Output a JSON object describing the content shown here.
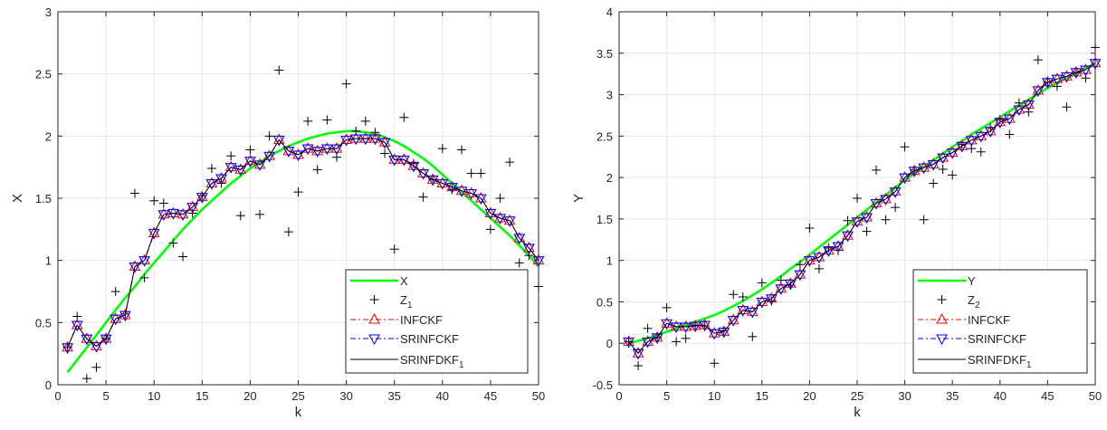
{
  "colors": {
    "truth": "#00ff00",
    "measurement": "#000000",
    "infckf": "#ff0000",
    "srinfckf": "#0000ff",
    "srinfdkf": "#000000",
    "grid": "#e6e6e6",
    "axis": "#262626"
  },
  "chart_data": [
    {
      "type": "line",
      "xlabel": "k",
      "ylabel": "X",
      "xlim": [
        0,
        50
      ],
      "ylim": [
        0,
        3
      ],
      "xticks": [
        0,
        5,
        10,
        15,
        20,
        25,
        30,
        35,
        40,
        45,
        50
      ],
      "yticks": [
        0,
        0.5,
        1,
        1.5,
        2,
        2.5,
        3
      ],
      "ytick_labels": [
        "0",
        "0.5",
        "1",
        "1.5",
        "2",
        "2.5",
        "3"
      ],
      "grid": true,
      "legend_position": "bottom-right",
      "x": [
        1,
        2,
        3,
        4,
        5,
        6,
        7,
        8,
        9,
        10,
        11,
        12,
        13,
        14,
        15,
        16,
        17,
        18,
        19,
        20,
        21,
        22,
        23,
        24,
        25,
        26,
        27,
        28,
        29,
        30,
        31,
        32,
        33,
        34,
        35,
        36,
        37,
        38,
        39,
        40,
        41,
        42,
        43,
        44,
        45,
        46,
        47,
        48,
        49,
        50
      ],
      "series": [
        {
          "name": "X",
          "style": "truth",
          "values": [
            0.1,
            0.2,
            0.3,
            0.4,
            0.5,
            0.6,
            0.7,
            0.79,
            0.89,
            0.98,
            1.07,
            1.16,
            1.25,
            1.33,
            1.41,
            1.48,
            1.55,
            1.62,
            1.68,
            1.74,
            1.79,
            1.84,
            1.88,
            1.92,
            1.95,
            1.98,
            2.0,
            2.02,
            2.03,
            2.04,
            2.04,
            2.03,
            2.02,
            1.99,
            1.96,
            1.92,
            1.87,
            1.82,
            1.76,
            1.69,
            1.62,
            1.55,
            1.48,
            1.41,
            1.34,
            1.27,
            1.2,
            1.12,
            1.04,
            0.95
          ]
        },
        {
          "name": "Z",
          "name_sub": "1",
          "style": "measurement",
          "values": [
            0.3,
            0.55,
            0.05,
            0.14,
            0.37,
            0.75,
            0.57,
            1.54,
            0.86,
            1.48,
            1.46,
            1.14,
            1.03,
            1.38,
            1.52,
            1.74,
            1.62,
            1.84,
            1.36,
            1.89,
            1.37,
            2.0,
            2.53,
            1.23,
            1.55,
            2.12,
            1.73,
            2.13,
            1.83,
            2.42,
            2.04,
            2.12,
            2.03,
            1.86,
            1.09,
            2.15,
            1.78,
            1.51,
            1.65,
            1.9,
            1.57,
            1.89,
            1.7,
            1.7,
            1.25,
            1.5,
            1.79,
            0.98,
            1.04,
            0.79
          ]
        },
        {
          "name": "INFCKF",
          "style": "infckf",
          "values": [
            0.3,
            0.48,
            0.37,
            0.31,
            0.37,
            0.53,
            0.56,
            0.95,
            1.0,
            1.22,
            1.37,
            1.38,
            1.37,
            1.43,
            1.51,
            1.62,
            1.66,
            1.75,
            1.73,
            1.8,
            1.77,
            1.84,
            1.97,
            1.88,
            1.85,
            1.9,
            1.88,
            1.9,
            1.9,
            1.97,
            1.98,
            1.98,
            1.98,
            1.95,
            1.81,
            1.81,
            1.76,
            1.7,
            1.65,
            1.62,
            1.59,
            1.56,
            1.54,
            1.5,
            1.38,
            1.34,
            1.32,
            1.18,
            1.1,
            1.0
          ]
        },
        {
          "name": "SRINFCKF",
          "style": "srinfckf",
          "values": [
            0.3,
            0.48,
            0.37,
            0.31,
            0.37,
            0.53,
            0.56,
            0.95,
            1.0,
            1.22,
            1.37,
            1.38,
            1.37,
            1.43,
            1.51,
            1.62,
            1.66,
            1.75,
            1.73,
            1.8,
            1.77,
            1.84,
            1.97,
            1.88,
            1.85,
            1.9,
            1.88,
            1.9,
            1.9,
            1.97,
            1.98,
            1.98,
            1.98,
            1.95,
            1.81,
            1.81,
            1.76,
            1.7,
            1.65,
            1.62,
            1.59,
            1.56,
            1.54,
            1.5,
            1.38,
            1.34,
            1.32,
            1.18,
            1.1,
            1.0
          ]
        },
        {
          "name": "SRINFDKF",
          "name_sub": "1",
          "style": "srinfdkf",
          "values": [
            0.3,
            0.48,
            0.37,
            0.31,
            0.37,
            0.53,
            0.56,
            0.95,
            1.0,
            1.22,
            1.37,
            1.38,
            1.37,
            1.43,
            1.51,
            1.62,
            1.66,
            1.75,
            1.73,
            1.8,
            1.77,
            1.84,
            1.97,
            1.88,
            1.85,
            1.9,
            1.88,
            1.9,
            1.9,
            1.97,
            1.98,
            1.98,
            1.98,
            1.95,
            1.81,
            1.81,
            1.76,
            1.7,
            1.65,
            1.62,
            1.59,
            1.56,
            1.54,
            1.5,
            1.38,
            1.34,
            1.32,
            1.18,
            1.1,
            1.0
          ]
        }
      ]
    },
    {
      "type": "line",
      "xlabel": "k",
      "ylabel": "Y",
      "xlim": [
        0,
        50
      ],
      "ylim": [
        -0.5,
        4
      ],
      "xticks": [
        0,
        5,
        10,
        15,
        20,
        25,
        30,
        35,
        40,
        45,
        50
      ],
      "yticks": [
        -0.5,
        0,
        0.5,
        1,
        1.5,
        2,
        2.5,
        3,
        3.5,
        4
      ],
      "ytick_labels": [
        "-0.5",
        "0",
        "0.5",
        "1",
        "1.5",
        "2",
        "2.5",
        "3",
        "3.5",
        "4"
      ],
      "grid": true,
      "legend_position": "bottom-right",
      "x": [
        1,
        2,
        3,
        4,
        5,
        6,
        7,
        8,
        9,
        10,
        11,
        12,
        13,
        14,
        15,
        16,
        17,
        18,
        19,
        20,
        21,
        22,
        23,
        24,
        25,
        26,
        27,
        28,
        29,
        30,
        31,
        32,
        33,
        34,
        35,
        36,
        37,
        38,
        39,
        40,
        41,
        42,
        43,
        44,
        45,
        46,
        47,
        48,
        49,
        50
      ],
      "series": [
        {
          "name": "Y",
          "style": "truth",
          "values": [
            0.0,
            0.03,
            0.06,
            0.1,
            0.14,
            0.18,
            0.22,
            0.26,
            0.3,
            0.34,
            0.39,
            0.45,
            0.51,
            0.58,
            0.65,
            0.73,
            0.81,
            0.9,
            0.98,
            1.07,
            1.16,
            1.25,
            1.34,
            1.43,
            1.52,
            1.61,
            1.7,
            1.79,
            1.88,
            1.97,
            2.05,
            2.13,
            2.21,
            2.29,
            2.37,
            2.44,
            2.52,
            2.59,
            2.66,
            2.73,
            2.8,
            2.87,
            2.94,
            3.01,
            3.08,
            3.14,
            3.2,
            3.26,
            3.32,
            3.38
          ]
        },
        {
          "name": "Z",
          "name_sub": "2",
          "style": "measurement",
          "values": [
            0.02,
            -0.27,
            0.18,
            0.07,
            0.43,
            0.02,
            0.06,
            0.22,
            0.21,
            -0.24,
            0.15,
            0.59,
            0.56,
            0.08,
            0.73,
            0.51,
            0.76,
            0.7,
            0.95,
            1.39,
            0.9,
            1.15,
            1.12,
            1.48,
            1.75,
            1.35,
            2.09,
            1.49,
            1.64,
            2.37,
            2.09,
            1.49,
            1.93,
            2.1,
            2.03,
            2.4,
            2.35,
            2.31,
            2.6,
            2.7,
            2.52,
            2.9,
            2.79,
            3.42,
            3.15,
            3.1,
            2.85,
            3.27,
            3.2,
            3.57
          ]
        },
        {
          "name": "INFCKF",
          "style": "infckf",
          "values": [
            0.02,
            -0.12,
            0.02,
            0.07,
            0.24,
            0.2,
            0.2,
            0.21,
            0.22,
            0.12,
            0.14,
            0.28,
            0.4,
            0.38,
            0.5,
            0.54,
            0.66,
            0.72,
            0.83,
            1.0,
            1.04,
            1.12,
            1.17,
            1.3,
            1.47,
            1.52,
            1.69,
            1.74,
            1.83,
            2.0,
            2.08,
            2.12,
            2.16,
            2.24,
            2.3,
            2.38,
            2.45,
            2.5,
            2.56,
            2.67,
            2.71,
            2.82,
            2.88,
            3.05,
            3.15,
            3.19,
            3.22,
            3.27,
            3.3,
            3.38
          ]
        },
        {
          "name": "SRINFCKF",
          "style": "srinfckf",
          "values": [
            0.02,
            -0.12,
            0.02,
            0.07,
            0.24,
            0.2,
            0.2,
            0.21,
            0.22,
            0.12,
            0.14,
            0.28,
            0.4,
            0.38,
            0.5,
            0.54,
            0.66,
            0.72,
            0.83,
            1.0,
            1.04,
            1.12,
            1.17,
            1.3,
            1.47,
            1.52,
            1.69,
            1.74,
            1.83,
            2.0,
            2.08,
            2.12,
            2.16,
            2.24,
            2.3,
            2.38,
            2.45,
            2.5,
            2.56,
            2.67,
            2.71,
            2.82,
            2.88,
            3.05,
            3.15,
            3.19,
            3.22,
            3.27,
            3.3,
            3.38
          ]
        },
        {
          "name": "SRINFDKF",
          "name_sub": "1",
          "style": "srinfdkf",
          "values": [
            0.02,
            -0.12,
            0.02,
            0.07,
            0.24,
            0.2,
            0.2,
            0.21,
            0.22,
            0.12,
            0.14,
            0.28,
            0.4,
            0.38,
            0.5,
            0.54,
            0.66,
            0.72,
            0.83,
            1.0,
            1.04,
            1.12,
            1.17,
            1.3,
            1.47,
            1.52,
            1.69,
            1.74,
            1.83,
            2.0,
            2.08,
            2.12,
            2.16,
            2.24,
            2.3,
            2.38,
            2.45,
            2.5,
            2.56,
            2.67,
            2.71,
            2.82,
            2.88,
            3.05,
            3.15,
            3.19,
            3.22,
            3.27,
            3.3,
            3.38
          ]
        }
      ]
    }
  ]
}
